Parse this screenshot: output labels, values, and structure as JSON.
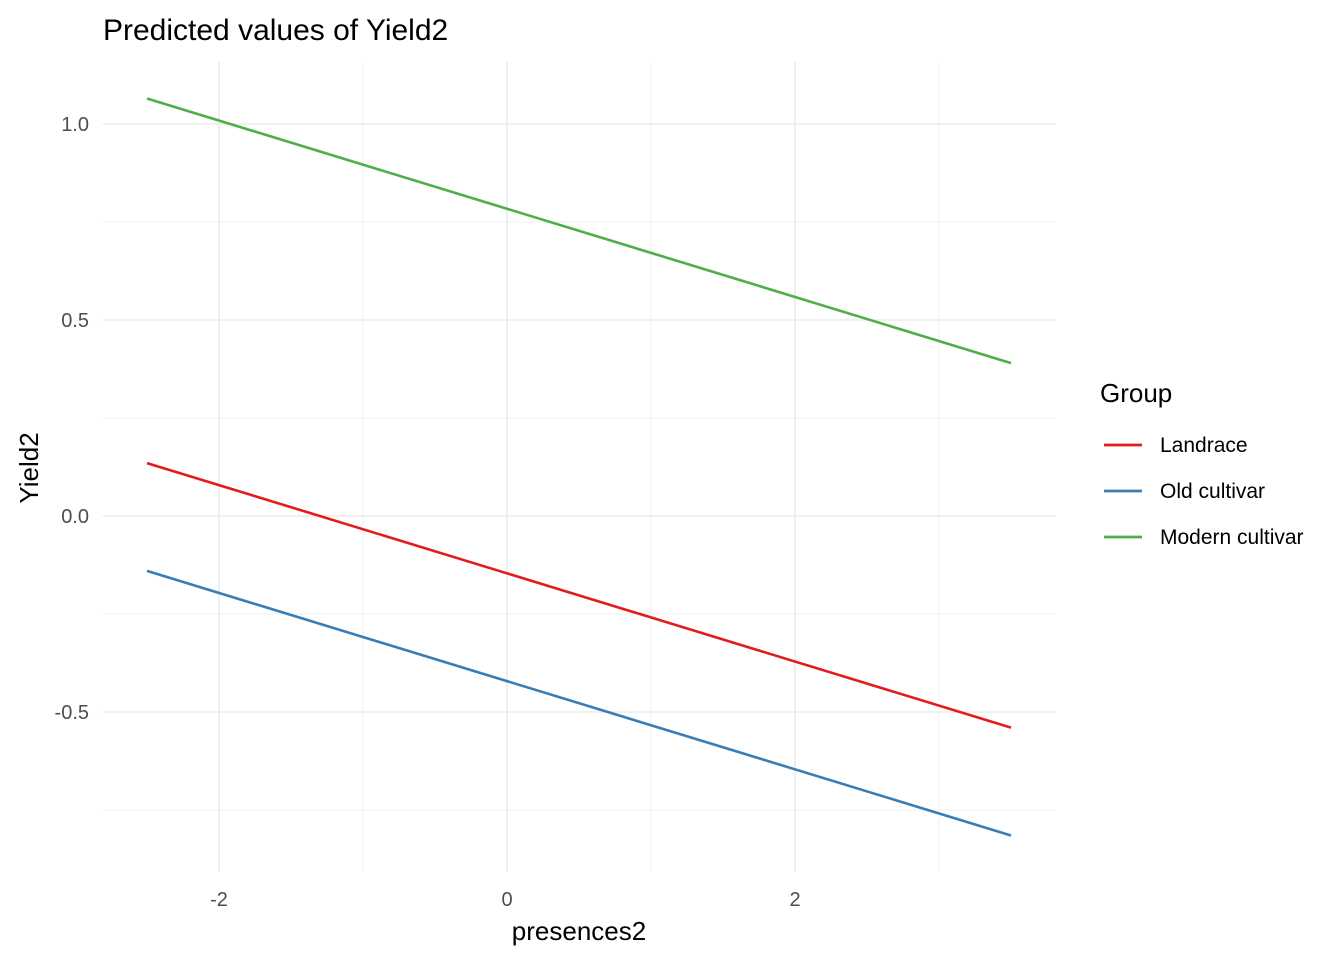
{
  "chart_data": {
    "type": "line",
    "title": "Predicted values of Yield2",
    "xlabel": "presences2",
    "ylabel": "Yield2",
    "xlim": [
      -3.0,
      3.8
    ],
    "ylim": [
      -0.9,
      1.15
    ],
    "x_ticks": [
      -2,
      0,
      2
    ],
    "x_tick_labels": [
      "-2",
      "0",
      "2"
    ],
    "x_minor": [
      -3,
      -1,
      1,
      3
    ],
    "y_ticks": [
      -0.5,
      0.0,
      0.5,
      1.0
    ],
    "y_tick_labels": [
      "-0.5",
      "0.0",
      "0.5",
      "1.0"
    ],
    "y_minor": [
      -0.75,
      -0.25,
      0.25,
      0.75
    ],
    "grid": true,
    "legend": {
      "title": "Group",
      "position": "right"
    },
    "series": [
      {
        "name": "Landrace",
        "color": "#E41A1C",
        "x": [
          -2.5,
          3.5
        ],
        "y": [
          0.135,
          -0.54
        ]
      },
      {
        "name": "Old cultivar",
        "color": "#377EB8",
        "x": [
          -2.5,
          3.5
        ],
        "y": [
          -0.14,
          -0.815
        ]
      },
      {
        "name": "Modern cultivar",
        "color": "#4DAF4A",
        "x": [
          -2.5,
          3.5
        ],
        "y": [
          1.065,
          0.39
        ]
      }
    ]
  }
}
